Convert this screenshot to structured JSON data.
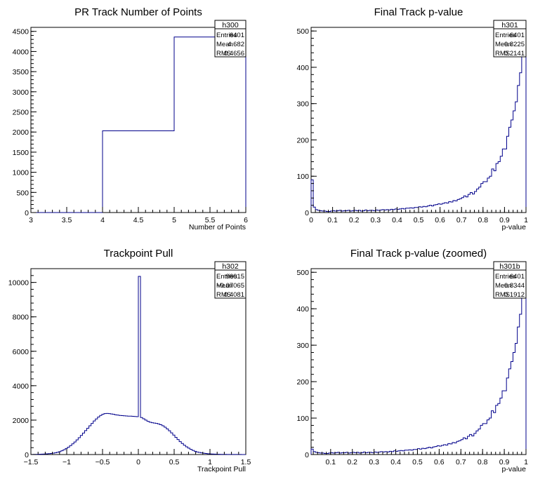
{
  "colors": {
    "histogram": "#00008b",
    "frame": "#000000",
    "background": "#ffffff"
  },
  "chart_data": [
    {
      "type": "histogram",
      "title": "PR Track Number of Points",
      "xlabel": "Number of Points",
      "ylabel": "",
      "xlim": [
        3,
        6
      ],
      "ylim": [
        0,
        4600
      ],
      "xticks": [
        "3",
        "3.5",
        "4",
        "4.5",
        "5",
        "5.5",
        "6"
      ],
      "yticks": [
        "0",
        "500",
        "1000",
        "1500",
        "2000",
        "2500",
        "3000",
        "3500",
        "4000",
        "4500"
      ],
      "bins": {
        "edges": [
          3,
          4,
          5,
          6
        ],
        "counts": [
          0,
          2030,
          4360
        ]
      },
      "stats": {
        "name": "h300",
        "rows": [
          [
            "Entries",
            "6401"
          ],
          [
            "Mean",
            "4.682"
          ],
          [
            "RMS",
            "0.4656"
          ]
        ]
      }
    },
    {
      "type": "histogram",
      "title": "Final Track p-value",
      "xlabel": "p-value",
      "ylabel": "",
      "xlim": [
        0,
        1
      ],
      "ylim": [
        0,
        510
      ],
      "xticks": [
        "0",
        "0.1",
        "0.2",
        "0.3",
        "0.4",
        "0.5",
        "0.6",
        "0.7",
        "0.8",
        "0.9",
        "1"
      ],
      "yticks": [
        "0",
        "100",
        "200",
        "300",
        "400",
        "500"
      ],
      "bins": {
        "start": 0,
        "width": 0.01,
        "counts": [
          90,
          15,
          8,
          6,
          5,
          4,
          4,
          3,
          3,
          4,
          5,
          4,
          5,
          6,
          4,
          5,
          5,
          6,
          4,
          5,
          6,
          5,
          6,
          4,
          5,
          7,
          5,
          6,
          6,
          5,
          7,
          6,
          7,
          8,
          7,
          8,
          7,
          9,
          8,
          10,
          9,
          10,
          11,
          10,
          12,
          12,
          13,
          12,
          14,
          14,
          16,
          15,
          17,
          16,
          18,
          20,
          18,
          21,
          22,
          24,
          23,
          25,
          27,
          26,
          30,
          29,
          33,
          32,
          36,
          38,
          41,
          46,
          43,
          50,
          55,
          51,
          58,
          65,
          70,
          80,
          85,
          85,
          95,
          100,
          120,
          115,
          135,
          140,
          155,
          175,
          175,
          210,
          235,
          255,
          280,
          305,
          350,
          385,
          430,
          460
        ]
      },
      "stats": {
        "name": "h301",
        "rows": [
          [
            "Entries",
            "6401"
          ],
          [
            "Mean",
            "0.8225"
          ],
          [
            "RMS",
            "0.2141"
          ]
        ]
      }
    },
    {
      "type": "histogram",
      "title": "Trackpoint Pull",
      "xlabel": "Trackpoint Pull",
      "ylabel": "",
      "xlim": [
        -1.5,
        1.5
      ],
      "ylim": [
        0,
        10800
      ],
      "xticks": [
        "−1.5",
        "−1",
        "−0.5",
        "0",
        "0.5",
        "1",
        "1.5"
      ],
      "yticks": [
        "0",
        "2000",
        "4000",
        "6000",
        "8000",
        "10000"
      ],
      "bins": {
        "start": -1.5,
        "width": 0.03,
        "counts": [
          5,
          8,
          10,
          15,
          20,
          25,
          30,
          40,
          50,
          60,
          80,
          100,
          130,
          170,
          220,
          280,
          350,
          430,
          520,
          620,
          730,
          850,
          980,
          1110,
          1250,
          1390,
          1530,
          1670,
          1810,
          1950,
          2070,
          2180,
          2270,
          2340,
          2380,
          2390,
          2380,
          2360,
          2340,
          2310,
          2290,
          2270,
          2260,
          2250,
          2240,
          2230,
          2230,
          2220,
          2210,
          2200,
          10350,
          2150,
          2080,
          2000,
          1930,
          1880,
          1850,
          1830,
          1810,
          1780,
          1730,
          1670,
          1590,
          1490,
          1380,
          1260,
          1130,
          1000,
          870,
          750,
          640,
          540,
          450,
          370,
          300,
          240,
          190,
          150,
          120,
          95,
          75,
          60,
          48,
          38,
          30,
          24,
          19,
          15,
          12,
          10,
          8,
          7,
          6,
          5,
          4,
          4,
          3,
          3,
          2,
          2
        ]
      },
      "stats": {
        "name": "h302",
        "rows": [
          [
            "Entries",
            "96015"
          ],
          [
            "Mean",
            "−0.07065"
          ],
          [
            "RMS",
            "0.4081"
          ]
        ]
      }
    },
    {
      "type": "histogram",
      "title": "Final Track p-value (zoomed)",
      "xlabel": "p-value",
      "ylabel": "",
      "xlim": [
        0.01,
        1
      ],
      "ylim": [
        0,
        510
      ],
      "xticks": [
        "0.1",
        "0.2",
        "0.3",
        "0.4",
        "0.5",
        "0.6",
        "0.7",
        "0.8",
        "0.9",
        "1"
      ],
      "yticks": [
        "0",
        "100",
        "200",
        "300",
        "400",
        "500"
      ],
      "bins": {
        "start": 0.01,
        "width": 0.01,
        "counts": [
          15,
          8,
          6,
          5,
          4,
          4,
          3,
          3,
          4,
          5,
          4,
          5,
          6,
          4,
          5,
          5,
          6,
          4,
          5,
          6,
          5,
          6,
          4,
          5,
          7,
          5,
          6,
          6,
          5,
          7,
          6,
          7,
          8,
          7,
          8,
          7,
          9,
          8,
          10,
          9,
          10,
          11,
          10,
          12,
          12,
          13,
          12,
          14,
          14,
          16,
          15,
          17,
          16,
          18,
          20,
          18,
          21,
          22,
          24,
          23,
          25,
          27,
          26,
          30,
          29,
          33,
          32,
          36,
          38,
          41,
          46,
          43,
          50,
          55,
          51,
          58,
          65,
          70,
          80,
          85,
          85,
          95,
          100,
          120,
          115,
          135,
          140,
          155,
          175,
          175,
          210,
          235,
          255,
          280,
          305,
          350,
          385,
          430,
          460
        ]
      },
      "stats": {
        "name": "h301b",
        "rows": [
          [
            "Entries",
            "6401"
          ],
          [
            "Mean",
            "0.8344"
          ],
          [
            "RMS",
            "0.1912"
          ]
        ]
      }
    }
  ]
}
